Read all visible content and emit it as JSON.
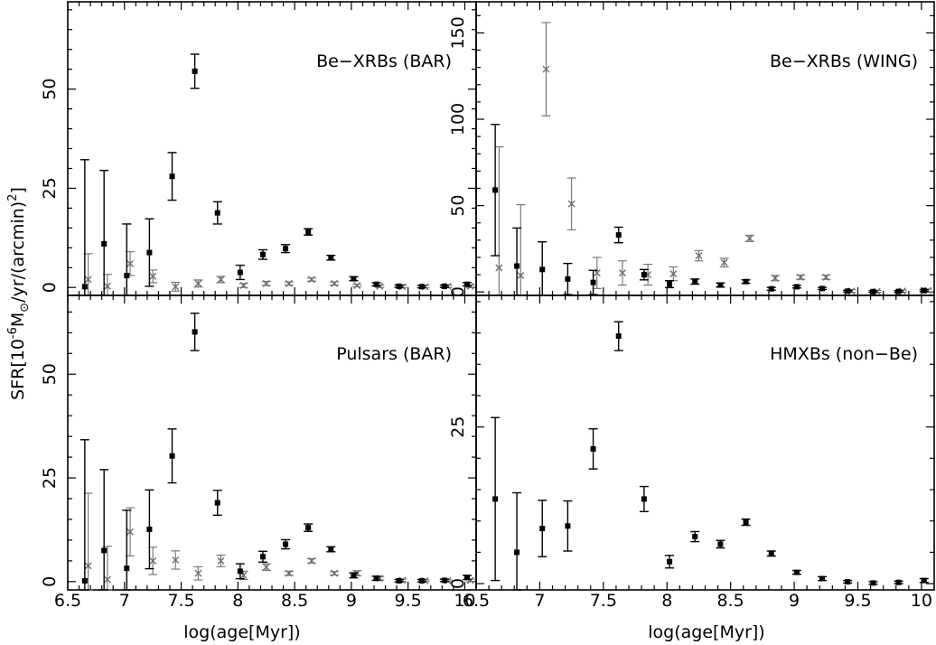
{
  "chart_data": {
    "type": "scatter",
    "xlabel": "log(age[Myr])",
    "ylabel": {
      "prefix": "SFR[10",
      "exp": "-6",
      "mid": "M",
      "sub": "⊙",
      "suffix": "/yr/(arcmin)",
      "sq": "2",
      "close": "]"
    },
    "xlim": [
      6.5,
      10.1
    ],
    "xticks": [
      6.5,
      7,
      7.5,
      8,
      8.5,
      9,
      9.5,
      10
    ],
    "xticklabels": [
      "6.5",
      "7",
      "7.5",
      "8",
      "8.5",
      "9",
      "9.5",
      "10"
    ],
    "colors": {
      "black": "#000000",
      "gray": "#6e6e6e"
    },
    "panels": [
      {
        "label": "Be−XRBs (BAR)",
        "ylim": [
          -2,
          72
        ],
        "yticks": [
          0,
          25,
          50
        ],
        "yticklabels": [
          "0",
          "25",
          "50"
        ],
        "series": [
          {
            "name": "black",
            "marker": "square",
            "x": [
              6.65,
              6.82,
              7.02,
              7.22,
              7.42,
              7.62,
              7.82,
              8.02,
              8.22,
              8.42,
              8.62,
              8.82,
              9.02,
              9.22,
              9.42,
              9.62,
              9.82,
              10.02
            ],
            "y": [
              0.2,
              11.0,
              3.0,
              8.8,
              28.0,
              54.5,
              18.8,
              3.8,
              8.3,
              9.8,
              14.0,
              7.5,
              2.2,
              0.8,
              0.3,
              0.2,
              0.3,
              0.8
            ],
            "err": [
              32,
              18.5,
              13,
              8.5,
              6,
              4.3,
              2.8,
              1.8,
              1.2,
              1.0,
              0.8,
              0.6,
              0.5,
              0.4,
              0.3,
              0.3,
              0.3,
              0.4
            ]
          },
          {
            "name": "gray",
            "marker": "cross",
            "x": [
              6.68,
              6.85,
              7.05,
              7.25,
              7.45,
              7.65,
              7.85,
              8.05,
              8.25,
              8.45,
              8.65,
              8.85,
              9.05,
              9.25,
              9.45,
              9.65,
              9.85,
              10.05
            ],
            "y": [
              2.0,
              0.3,
              6.0,
              2.8,
              0.2,
              1.0,
              2.0,
              0.5,
              1.0,
              1.0,
              2.0,
              1.0,
              0.5,
              0.3,
              0.2,
              0.2,
              0.3,
              0.3
            ],
            "err": [
              6.5,
              3.0,
              3.0,
              1.6,
              1.1,
              0.9,
              0.8,
              0.5,
              0.5,
              0.4,
              0.4,
              0.4,
              0.3,
              0.3,
              0.3,
              0.3,
              0.3,
              0.3
            ]
          }
        ]
      },
      {
        "label": "Be−XRBs (WING)",
        "ylim": [
          -2,
          168
        ],
        "yticks": [
          0,
          50,
          100,
          150
        ],
        "yticklabels": [
          "0",
          "50",
          "100",
          "150"
        ],
        "series": [
          {
            "name": "black",
            "marker": "square",
            "x": [
              6.65,
              6.82,
              7.02,
              7.22,
              7.42,
              7.62,
              7.82,
              8.02,
              8.22,
              8.42,
              8.62,
              8.82,
              9.02,
              9.22,
              9.42,
              9.62,
              9.82,
              10.02
            ],
            "y": [
              59,
              15,
              13,
              7.5,
              5.5,
              33,
              10,
              4.5,
              6,
              4,
              6,
              1.8,
              3,
              2,
              0.5,
              0.2,
              0.3,
              0.8
            ],
            "err": [
              38,
              22,
              16,
              9,
              7,
              4.5,
              3,
              2,
              1.5,
              1.2,
              1.0,
              0.8,
              0.7,
              0.6,
              0.5,
              0.5,
              0.5,
              0.6
            ]
          },
          {
            "name": "gray",
            "marker": "cross",
            "x": [
              6.68,
              6.85,
              7.05,
              7.25,
              7.45,
              7.65,
              7.85,
              8.05,
              8.25,
              8.45,
              8.65,
              8.85,
              9.05,
              9.25,
              9.45,
              9.65,
              9.85,
              10.05
            ],
            "y": [
              14,
              9.5,
              129,
              51,
              11,
              11,
              10,
              10.5,
              21,
              17,
              31,
              8,
              8.5,
              8.5,
              0.5,
              0.3,
              0.5,
              0.8
            ],
            "err": [
              70,
              41,
              27,
              15,
              9,
              7,
              6,
              4,
              3,
              2.5,
              1.8,
              1.5,
              1.2,
              1.2,
              0.8,
              0.6,
              0.6,
              0.8
            ]
          }
        ]
      },
      {
        "label": "Pulsars (BAR)",
        "ylim": [
          -2,
          69
        ],
        "yticks": [
          0,
          25,
          50
        ],
        "yticklabels": [
          "0",
          "25",
          "50"
        ],
        "series": [
          {
            "name": "black",
            "marker": "square",
            "x": [
              6.65,
              6.82,
              7.02,
              7.22,
              7.42,
              7.62,
              7.82,
              8.02,
              8.22,
              8.42,
              8.62,
              8.82,
              9.02,
              9.22,
              9.42,
              9.62,
              9.82,
              10.02
            ],
            "y": [
              0.2,
              7.5,
              3.2,
              12.6,
              30.3,
              60.2,
              19.0,
              2.5,
              6.0,
              9.0,
              13.0,
              7.8,
              1.5,
              0.8,
              0.2,
              0.2,
              0.3,
              1.0
            ],
            "err": [
              34,
              19.5,
              14,
              9.5,
              6.5,
              4.5,
              3.0,
              1.8,
              1.3,
              1.1,
              0.9,
              0.6,
              0.6,
              0.5,
              0.3,
              0.3,
              0.3,
              0.5
            ]
          },
          {
            "name": "gray",
            "marker": "cross",
            "x": [
              6.68,
              6.85,
              7.05,
              7.25,
              7.45,
              7.65,
              7.85,
              8.05,
              8.25,
              8.45,
              8.65,
              8.85,
              9.05,
              9.25,
              9.45,
              9.65,
              9.85,
              10.05
            ],
            "y": [
              3.8,
              0.5,
              12.0,
              5.0,
              5.2,
              2.0,
              5.0,
              1.5,
              3.5,
              2.0,
              5.0,
              2.0,
              2.0,
              0.8,
              0.3,
              0.2,
              0.2,
              0.3
            ],
            "err": [
              17.5,
              8.0,
              5.8,
              3.3,
              2.2,
              1.6,
              1.4,
              1.0,
              0.8,
              0.5,
              0.5,
              0.4,
              0.6,
              0.4,
              0.3,
              0.2,
              0.2,
              0.3
            ]
          }
        ]
      },
      {
        "label": "HMXBs (non−Be)",
        "ylim": [
          -1,
          46
        ],
        "yticks": [
          0,
          25
        ],
        "yticklabels": [
          "0",
          "25"
        ],
        "series": [
          {
            "name": "black",
            "marker": "square",
            "x": [
              6.65,
              6.82,
              7.02,
              7.22,
              7.42,
              7.62,
              7.82,
              8.02,
              8.22,
              8.42,
              8.62,
              8.82,
              9.02,
              9.22,
              9.42,
              9.62,
              9.82,
              10.02
            ],
            "y": [
              13.5,
              5.0,
              8.8,
              9.2,
              21.5,
              39.5,
              13.5,
              3.5,
              7.5,
              6.3,
              9.8,
              4.8,
              1.8,
              0.8,
              0.3,
              0.1,
              0.2,
              0.5
            ],
            "err": [
              13,
              9.5,
              4.5,
              4.0,
              3.2,
              2.3,
              2.0,
              1.0,
              0.8,
              0.6,
              0.5,
              0.4,
              0.3,
              0.3,
              0.2,
              0.2,
              0.2,
              0.3
            ]
          }
        ]
      }
    ]
  }
}
